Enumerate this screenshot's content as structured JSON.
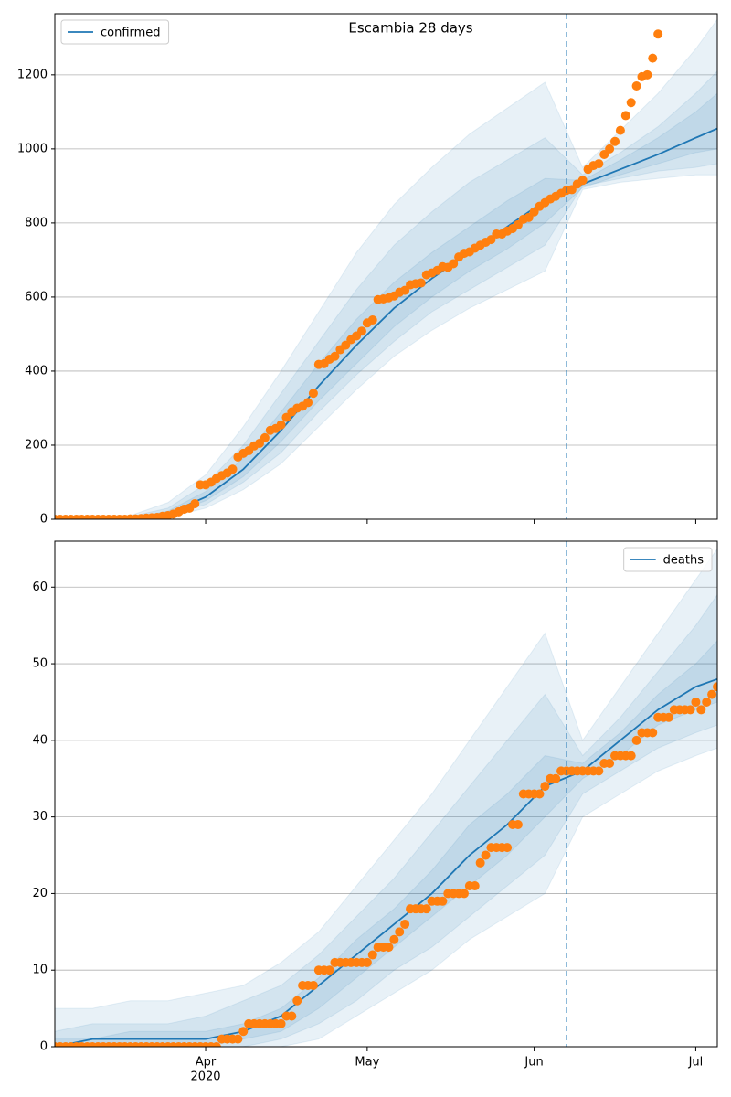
{
  "chart_data": [
    {
      "type": "line",
      "title": "Escambia 28 days",
      "legend": "upper left",
      "grid": "y",
      "xlim": [
        "2020-03-04",
        "2020-07-05"
      ],
      "xticks": [
        "2020-04-01",
        "2020-05-01",
        "2020-06-01",
        "2020-07-01"
      ],
      "ylim": [
        0,
        1365
      ],
      "yticks": [
        0,
        200,
        400,
        600,
        800,
        1000,
        1200
      ],
      "vline_x": "2020-06-07",
      "vline_color": "#1f77b4",
      "series": [
        {
          "name": "confirmed",
          "color": "#1f77b4",
          "x": [
            "2020-03-04",
            "2020-03-11",
            "2020-03-18",
            "2020-03-25",
            "2020-04-01",
            "2020-04-08",
            "2020-04-15",
            "2020-04-22",
            "2020-04-29",
            "2020-05-06",
            "2020-05-13",
            "2020-05-20",
            "2020-05-27",
            "2020-06-03",
            "2020-06-10",
            "2020-06-17",
            "2020-06-24",
            "2020-07-01",
            "2020-07-05"
          ],
          "values": [
            0,
            0,
            2,
            15,
            60,
            135,
            240,
            360,
            470,
            570,
            650,
            720,
            790,
            860,
            905,
            945,
            985,
            1030,
            1055
          ],
          "bands": [
            {
              "upper": [
                0,
                2,
                10,
                45,
                120,
                250,
                400,
                560,
                720,
                850,
                950,
                1040,
                1110,
                1180,
                950,
                1050,
                1150,
                1270,
                1350
              ],
              "lower": [
                0,
                0,
                0,
                5,
                30,
                80,
                150,
                250,
                350,
                440,
                510,
                570,
                620,
                670,
                890,
                910,
                920,
                930,
                930
              ]
            },
            {
              "upper": [
                0,
                1,
                7,
                30,
                95,
                200,
                340,
                480,
                620,
                740,
                830,
                910,
                970,
                1030,
                930,
                990,
                1060,
                1150,
                1210
              ],
              "lower": [
                0,
                0,
                0,
                8,
                40,
                100,
                180,
                290,
                390,
                480,
                560,
                620,
                680,
                740,
                900,
                920,
                940,
                950,
                960
              ]
            },
            {
              "upper": [
                0,
                1,
                4,
                22,
                75,
                165,
                290,
                420,
                540,
                640,
                720,
                790,
                860,
                920,
                915,
                970,
                1030,
                1100,
                1150
              ],
              "lower": [
                0,
                0,
                1,
                12,
                50,
                115,
                210,
                320,
                420,
                520,
                600,
                670,
                730,
                800,
                895,
                930,
                960,
                990,
                1000
              ]
            }
          ]
        },
        {
          "color": "#ff7f0e",
          "marker": "o",
          "x": [
            "2020-03-04",
            "2020-03-05",
            "2020-03-06",
            "2020-03-07",
            "2020-03-08",
            "2020-03-09",
            "2020-03-10",
            "2020-03-11",
            "2020-03-12",
            "2020-03-13",
            "2020-03-14",
            "2020-03-15",
            "2020-03-16",
            "2020-03-17",
            "2020-03-18",
            "2020-03-19",
            "2020-03-20",
            "2020-03-21",
            "2020-03-22",
            "2020-03-23",
            "2020-03-24",
            "2020-03-25",
            "2020-03-26",
            "2020-03-27",
            "2020-03-28",
            "2020-03-29",
            "2020-03-30",
            "2020-03-31",
            "2020-04-01",
            "2020-04-02",
            "2020-04-03",
            "2020-04-04",
            "2020-04-05",
            "2020-04-06",
            "2020-04-07",
            "2020-04-08",
            "2020-04-09",
            "2020-04-10",
            "2020-04-11",
            "2020-04-12",
            "2020-04-13",
            "2020-04-14",
            "2020-04-15",
            "2020-04-16",
            "2020-04-17",
            "2020-04-18",
            "2020-04-19",
            "2020-04-20",
            "2020-04-21",
            "2020-04-22",
            "2020-04-23",
            "2020-04-24",
            "2020-04-25",
            "2020-04-26",
            "2020-04-27",
            "2020-04-28",
            "2020-04-29",
            "2020-04-30",
            "2020-05-01",
            "2020-05-02",
            "2020-05-03",
            "2020-05-04",
            "2020-05-05",
            "2020-05-06",
            "2020-05-07",
            "2020-05-08",
            "2020-05-09",
            "2020-05-10",
            "2020-05-11",
            "2020-05-12",
            "2020-05-13",
            "2020-05-14",
            "2020-05-15",
            "2020-05-16",
            "2020-05-17",
            "2020-05-18",
            "2020-05-19",
            "2020-05-20",
            "2020-05-21",
            "2020-05-22",
            "2020-05-23",
            "2020-05-24",
            "2020-05-25",
            "2020-05-26",
            "2020-05-27",
            "2020-05-28",
            "2020-05-29",
            "2020-05-30",
            "2020-05-31",
            "2020-06-01",
            "2020-06-02",
            "2020-06-03",
            "2020-06-04",
            "2020-06-05",
            "2020-06-06",
            "2020-06-07",
            "2020-06-08",
            "2020-06-09",
            "2020-06-10",
            "2020-06-11",
            "2020-06-12",
            "2020-06-13",
            "2020-06-14",
            "2020-06-15",
            "2020-06-16",
            "2020-06-17",
            "2020-06-18",
            "2020-06-19",
            "2020-06-20",
            "2020-06-21",
            "2020-06-22",
            "2020-06-23",
            "2020-06-24",
            "2020-06-25",
            "2020-06-26",
            "2020-06-27",
            "2020-06-28",
            "2020-06-29",
            "2020-06-30",
            "2020-07-01",
            "2020-07-02",
            "2020-07-03",
            "2020-07-04",
            "2020-07-05"
          ],
          "values": [
            0,
            0,
            0,
            0,
            0,
            0,
            0,
            0,
            0,
            0,
            0,
            0,
            0,
            0,
            1,
            1,
            2,
            3,
            4,
            5,
            8,
            10,
            14,
            20,
            27,
            30,
            42,
            93,
            93,
            100,
            110,
            118,
            125,
            135,
            168,
            178,
            185,
            198,
            205,
            220,
            240,
            245,
            255,
            275,
            290,
            300,
            305,
            315,
            340,
            418,
            420,
            432,
            440,
            458,
            470,
            485,
            495,
            508,
            530,
            538,
            593,
            595,
            598,
            603,
            613,
            618,
            633,
            636,
            638,
            660,
            665,
            672,
            682,
            680,
            690,
            708,
            718,
            722,
            732,
            740,
            748,
            755,
            770,
            770,
            778,
            785,
            795,
            810,
            815,
            830,
            845,
            855,
            865,
            872,
            880,
            888,
            890,
            905,
            915,
            945,
            955,
            960,
            985,
            1000,
            1020,
            1050,
            1090,
            1125,
            1170,
            1195,
            1200,
            1245,
            1310,
            null,
            null,
            null,
            null,
            null,
            null,
            null,
            null,
            null,
            null,
            null
          ]
        }
      ]
    },
    {
      "type": "line",
      "legend": "upper right",
      "grid": "y",
      "xlim": [
        "2020-03-04",
        "2020-07-05"
      ],
      "xticks": [
        {
          "value": "2020-04-01",
          "label": "Apr"
        },
        {
          "value": "2020-05-01",
          "label": "May"
        },
        {
          "value": "2020-06-01",
          "label": "Jun"
        },
        {
          "value": "2020-07-01",
          "label": "Jul"
        }
      ],
      "x_year_label": "2020",
      "ylim": [
        0,
        66
      ],
      "yticks": [
        0,
        10,
        20,
        30,
        40,
        50,
        60
      ],
      "vline_x": "2020-06-07",
      "vline_color": "#1f77b4",
      "series": [
        {
          "name": "deaths",
          "color": "#1f77b4",
          "x": [
            "2020-03-04",
            "2020-03-11",
            "2020-03-18",
            "2020-03-25",
            "2020-04-01",
            "2020-04-08",
            "2020-04-15",
            "2020-04-22",
            "2020-04-29",
            "2020-05-06",
            "2020-05-13",
            "2020-05-20",
            "2020-05-27",
            "2020-06-03",
            "2020-06-10",
            "2020-06-17",
            "2020-06-24",
            "2020-07-01",
            "2020-07-05"
          ],
          "values": [
            0,
            1,
            1,
            1,
            1,
            2,
            4,
            8,
            12,
            16,
            20,
            25,
            29,
            34,
            36,
            40,
            44,
            47,
            48
          ],
          "bands": [
            {
              "upper": [
                5,
                5,
                6,
                6,
                7,
                8,
                11,
                15,
                21,
                27,
                33,
                40,
                47,
                54,
                40,
                47,
                54,
                61,
                65
              ],
              "lower": [
                0,
                0,
                0,
                0,
                0,
                0,
                0,
                1,
                4,
                7,
                10,
                14,
                17,
                20,
                30,
                33,
                36,
                38,
                39
              ]
            },
            {
              "upper": [
                2,
                3,
                3,
                3,
                4,
                6,
                8,
                12,
                17,
                22,
                28,
                34,
                40,
                46,
                38,
                43,
                49,
                55,
                59
              ],
              "lower": [
                0,
                0,
                0,
                0,
                0,
                0,
                1,
                3,
                6,
                10,
                13,
                17,
                21,
                25,
                33,
                36,
                39,
                41,
                42
              ]
            },
            {
              "upper": [
                1,
                1,
                2,
                2,
                2,
                3,
                5,
                9,
                14,
                18,
                23,
                29,
                33,
                38,
                37,
                41,
                46,
                50,
                53
              ],
              "lower": [
                0,
                0,
                0,
                0,
                0,
                1,
                2,
                5,
                9,
                13,
                17,
                21,
                25,
                30,
                35,
                38,
                42,
                44,
                45
              ]
            }
          ]
        },
        {
          "color": "#ff7f0e",
          "marker": "o",
          "x": [
            "2020-03-04",
            "2020-03-05",
            "2020-03-06",
            "2020-03-07",
            "2020-03-08",
            "2020-03-09",
            "2020-03-10",
            "2020-03-11",
            "2020-03-12",
            "2020-03-13",
            "2020-03-14",
            "2020-03-15",
            "2020-03-16",
            "2020-03-17",
            "2020-03-18",
            "2020-03-19",
            "2020-03-20",
            "2020-03-21",
            "2020-03-22",
            "2020-03-23",
            "2020-03-24",
            "2020-03-25",
            "2020-03-26",
            "2020-03-27",
            "2020-03-28",
            "2020-03-29",
            "2020-03-30",
            "2020-03-31",
            "2020-04-01",
            "2020-04-02",
            "2020-04-03",
            "2020-04-04",
            "2020-04-05",
            "2020-04-06",
            "2020-04-07",
            "2020-04-08",
            "2020-04-09",
            "2020-04-10",
            "2020-04-11",
            "2020-04-12",
            "2020-04-13",
            "2020-04-14",
            "2020-04-15",
            "2020-04-16",
            "2020-04-17",
            "2020-04-18",
            "2020-04-19",
            "2020-04-20",
            "2020-04-21",
            "2020-04-22",
            "2020-04-23",
            "2020-04-24",
            "2020-04-25",
            "2020-04-26",
            "2020-04-27",
            "2020-04-28",
            "2020-04-29",
            "2020-04-30",
            "2020-05-01",
            "2020-05-02",
            "2020-05-03",
            "2020-05-04",
            "2020-05-05",
            "2020-05-06",
            "2020-05-07",
            "2020-05-08",
            "2020-05-09",
            "2020-05-10",
            "2020-05-11",
            "2020-05-12",
            "2020-05-13",
            "2020-05-14",
            "2020-05-15",
            "2020-05-16",
            "2020-05-17",
            "2020-05-18",
            "2020-05-19",
            "2020-05-20",
            "2020-05-21",
            "2020-05-22",
            "2020-05-23",
            "2020-05-24",
            "2020-05-25",
            "2020-05-26",
            "2020-05-27",
            "2020-05-28",
            "2020-05-29",
            "2020-05-30",
            "2020-05-31",
            "2020-06-01",
            "2020-06-02",
            "2020-06-03",
            "2020-06-04",
            "2020-06-05",
            "2020-06-06",
            "2020-06-07",
            "2020-06-08",
            "2020-06-09",
            "2020-06-10",
            "2020-06-11",
            "2020-06-12",
            "2020-06-13",
            "2020-06-14",
            "2020-06-15",
            "2020-06-16",
            "2020-06-17",
            "2020-06-18",
            "2020-06-19",
            "2020-06-20",
            "2020-06-21",
            "2020-06-22",
            "2020-06-23",
            "2020-06-24",
            "2020-06-25",
            "2020-06-26",
            "2020-06-27",
            "2020-06-28",
            "2020-06-29",
            "2020-06-30",
            "2020-07-01",
            "2020-07-02",
            "2020-07-03",
            "2020-07-04",
            "2020-07-05"
          ],
          "values": [
            0,
            0,
            0,
            0,
            0,
            0,
            0,
            0,
            0,
            0,
            0,
            0,
            0,
            0,
            0,
            0,
            0,
            0,
            0,
            0,
            0,
            0,
            0,
            0,
            0,
            0,
            0,
            0,
            0,
            0,
            0,
            1,
            1,
            1,
            1,
            2,
            3,
            3,
            3,
            3,
            3,
            3,
            3,
            4,
            4,
            6,
            8,
            8,
            8,
            10,
            10,
            10,
            11,
            11,
            11,
            11,
            11,
            11,
            11,
            12,
            13,
            13,
            13,
            14,
            15,
            16,
            18,
            18,
            18,
            18,
            19,
            19,
            19,
            20,
            20,
            20,
            20,
            21,
            21,
            24,
            25,
            26,
            26,
            26,
            26,
            29,
            29,
            33,
            33,
            33,
            33,
            34,
            35,
            35,
            36,
            36,
            36,
            36,
            36,
            36,
            36,
            36,
            37,
            37,
            38,
            38,
            38,
            38,
            40,
            41,
            41,
            41,
            43,
            43,
            43,
            44,
            44,
            44,
            44,
            45,
            44,
            45,
            46,
            47
          ]
        }
      ]
    }
  ]
}
